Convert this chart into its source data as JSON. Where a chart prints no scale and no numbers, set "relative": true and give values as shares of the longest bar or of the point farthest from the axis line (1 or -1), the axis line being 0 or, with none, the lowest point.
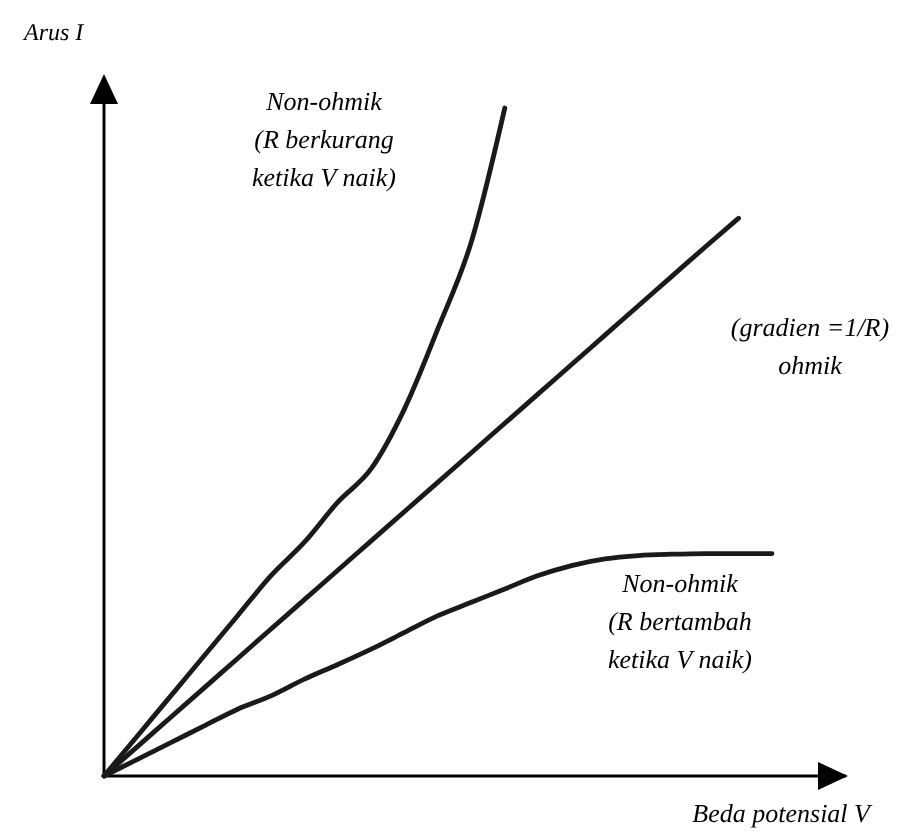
{
  "chart_data": {
    "type": "line",
    "relative": true,
    "xlabel": "Beda potensial V",
    "ylabel": "Arus I",
    "categories": [
      null,
      null,
      null,
      null,
      null,
      null,
      null,
      null,
      null,
      null,
      null,
      null,
      null,
      null,
      null,
      null,
      null,
      null,
      null,
      null,
      null
    ],
    "series": [
      {
        "color": "#1a1a1a",
        "values": [
          0,
          0.06,
          0.12,
          0.18,
          0.24,
          0.3,
          0.35,
          0.41,
          0.46,
          0.55,
          0.67,
          0.8,
          1,
          null,
          null,
          null,
          null,
          null,
          null,
          null,
          null
        ]
      },
      {
        "color": "#1a1a1a",
        "values": [
          0,
          0.044,
          0.088,
          0.132,
          0.176,
          0.22,
          0.264,
          0.308,
          0.352,
          0.396,
          0.44,
          0.484,
          0.528,
          0.572,
          0.616,
          0.66,
          0.704,
          0.748,
          0.792,
          0.835,
          null
        ]
      },
      {
        "color": "#1a1a1a",
        "values": [
          0,
          0.025,
          0.05,
          0.075,
          0.1,
          0.12,
          0.145,
          0.167,
          0.19,
          0.215,
          0.24,
          0.26,
          0.28,
          0.3,
          0.315,
          0.325,
          0.33,
          0.332,
          0.333,
          0.333,
          0.333
        ]
      }
    ],
    "annotations": [
      "Non-ohmik\n(R berkurang\nketika V naik)",
      "(gradien =1/R)\nohmik",
      "Non-ohmik\n(R bertambah\nketika V naik)"
    ]
  }
}
